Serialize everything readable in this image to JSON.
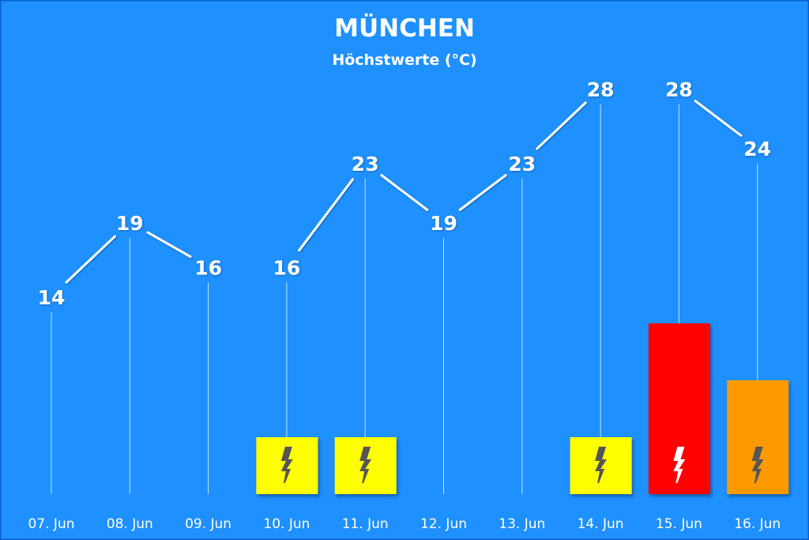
{
  "chart_data": {
    "type": "line",
    "title": "MÜNCHEN",
    "subtitle": "Höchstwerte (°C)",
    "categories": [
      "07. Jun",
      "08. Jun",
      "09. Jun",
      "10. Jun",
      "11. Jun",
      "12. Jun",
      "13. Jun",
      "14. Jun",
      "15. Jun",
      "16. Jun"
    ],
    "values": [
      14,
      19,
      16,
      16,
      23,
      19,
      23,
      28,
      28,
      24
    ],
    "ylim": [
      0,
      30
    ],
    "grid": false,
    "thunderstorm_warnings": [
      {
        "category": "10. Jun",
        "level": 1
      },
      {
        "category": "11. Jun",
        "level": 1
      },
      {
        "category": "14. Jun",
        "level": 1
      },
      {
        "category": "15. Jun",
        "level": 3
      },
      {
        "category": "16. Jun",
        "level": 2
      }
    ],
    "warning_colors": {
      "1": "#ffff00",
      "2": "#ff9900",
      "3": "#ff0000"
    }
  },
  "colors": {
    "background": "#1e90ff",
    "border": "#0a5fcf",
    "text": "#ffffff",
    "line": "#ffffff",
    "icon_dark": "#555555",
    "icon_light": "#ffffff"
  },
  "icons": {
    "warning": "lightning-bolt-icon"
  }
}
